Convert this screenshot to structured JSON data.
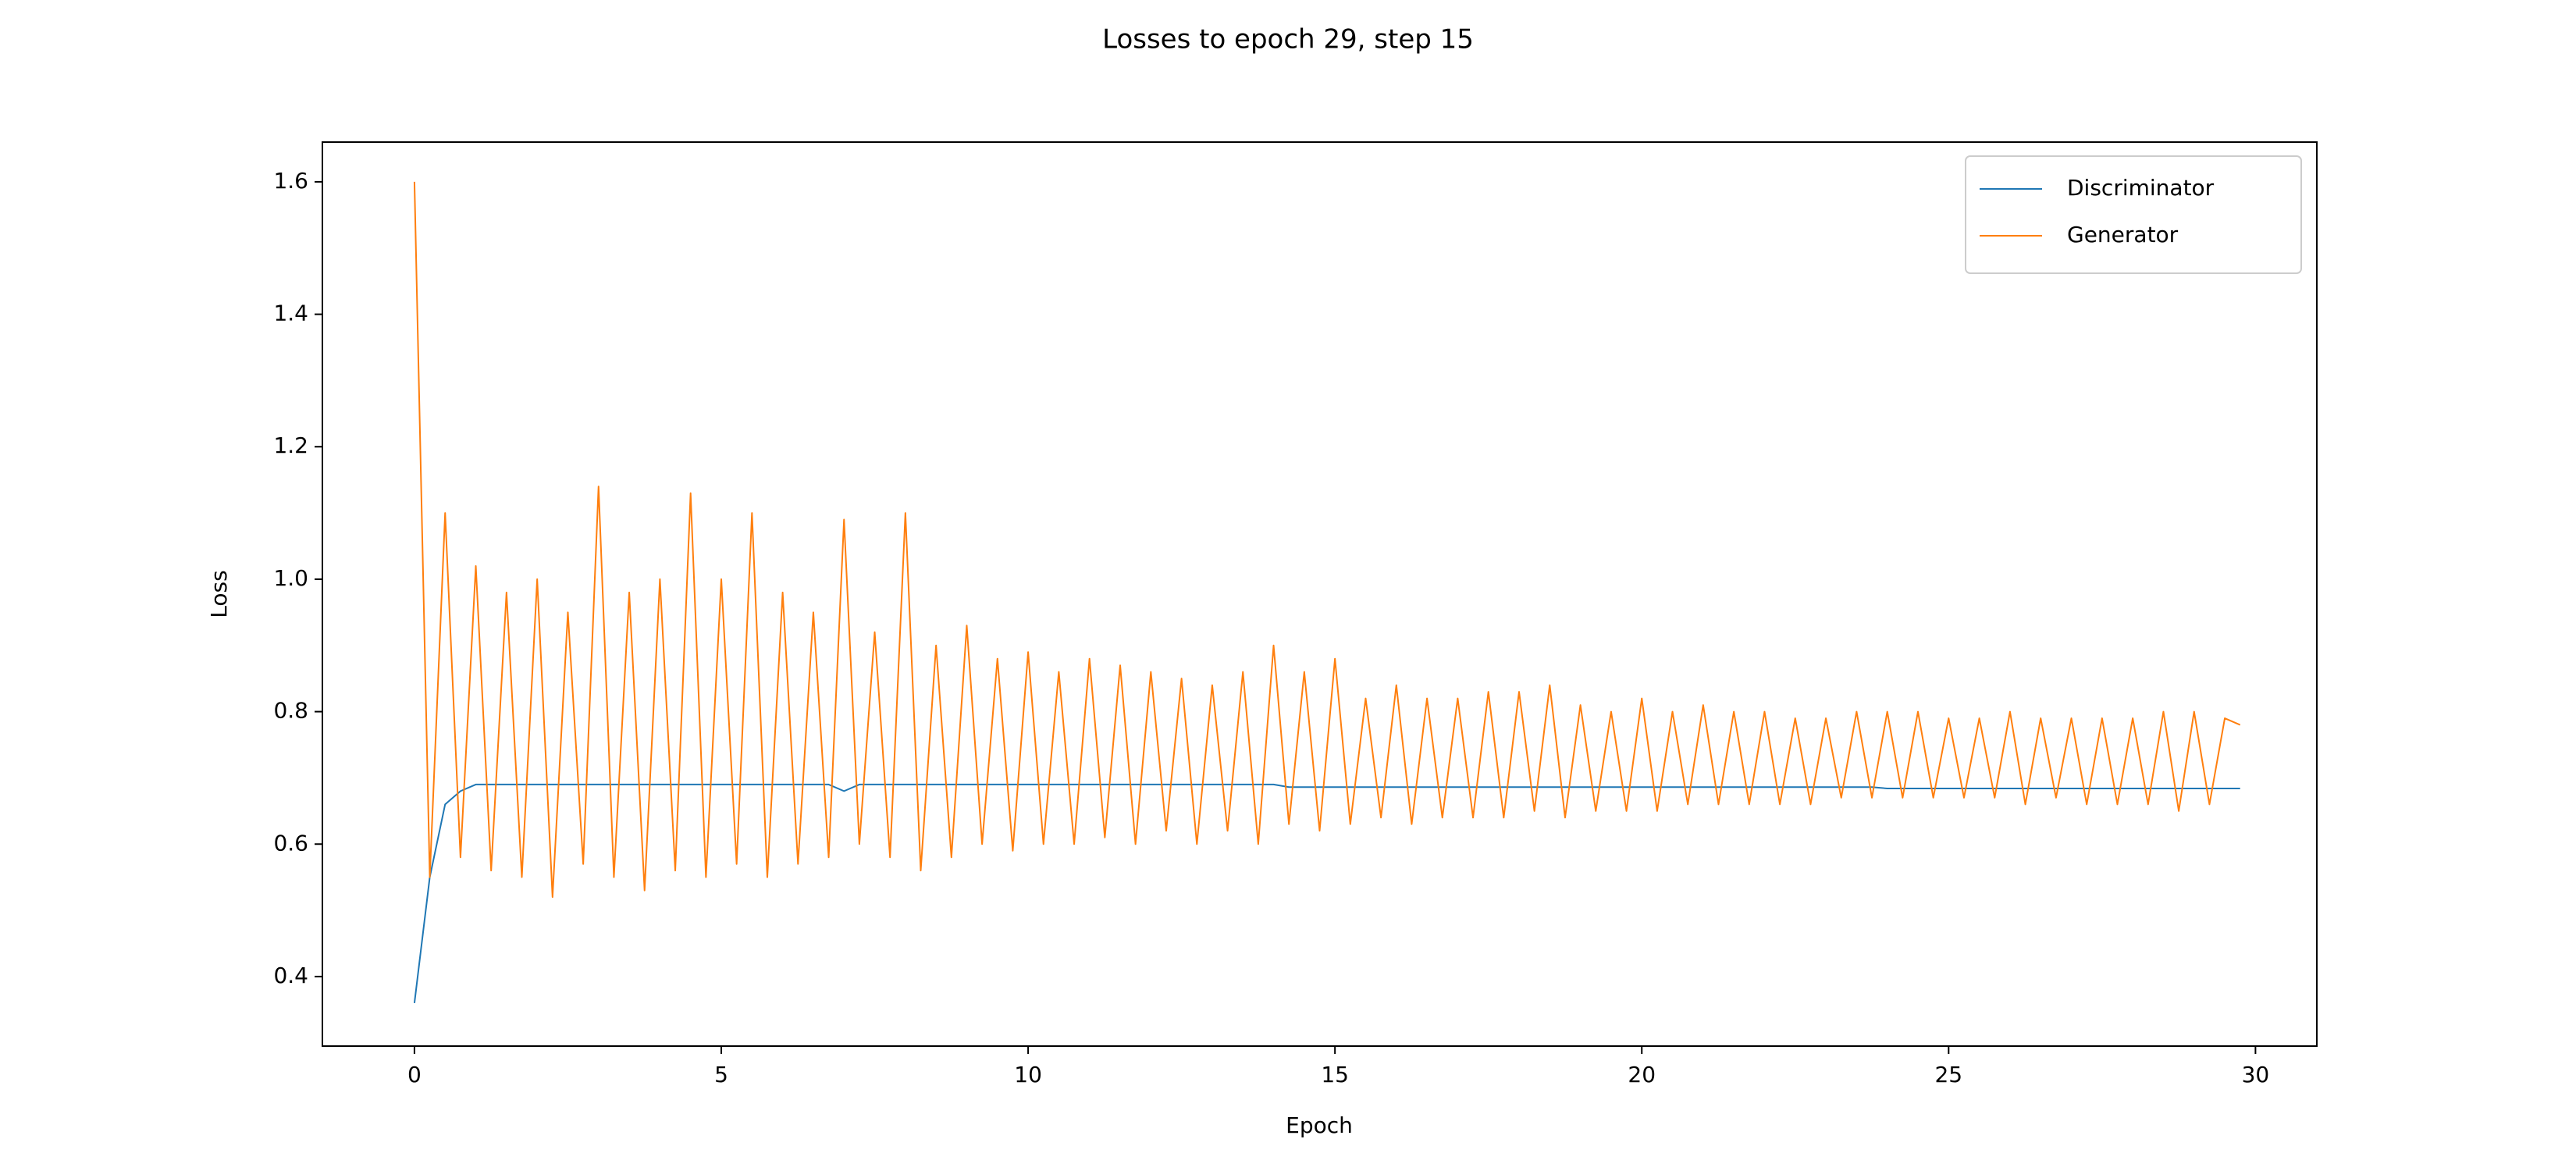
{
  "chart_data": {
    "type": "line",
    "title": "Losses to epoch 29, step 15",
    "xlabel": "Epoch",
    "ylabel": "Loss",
    "x": [
      0,
      0.25,
      0.5,
      0.75,
      1,
      1.25,
      1.5,
      1.75,
      2,
      2.25,
      2.5,
      2.75,
      3,
      3.25,
      3.5,
      3.75,
      4,
      4.25,
      4.5,
      4.75,
      5,
      5.25,
      5.5,
      5.75,
      6,
      6.25,
      6.5,
      6.75,
      7,
      7.25,
      7.5,
      7.75,
      8,
      8.25,
      8.5,
      8.75,
      9,
      9.25,
      9.5,
      9.75,
      10,
      10.25,
      10.5,
      10.75,
      11,
      11.25,
      11.5,
      11.75,
      12,
      12.25,
      12.5,
      12.75,
      13,
      13.25,
      13.5,
      13.75,
      14,
      14.25,
      14.5,
      14.75,
      15,
      15.25,
      15.5,
      15.75,
      16,
      16.25,
      16.5,
      16.75,
      17,
      17.25,
      17.5,
      17.75,
      18,
      18.25,
      18.5,
      18.75,
      19,
      19.25,
      19.5,
      19.75,
      20,
      20.25,
      20.5,
      20.75,
      21,
      21.25,
      21.5,
      21.75,
      22,
      22.25,
      22.5,
      22.75,
      23,
      23.25,
      23.5,
      23.75,
      24,
      24.25,
      24.5,
      24.75,
      25,
      25.25,
      25.5,
      25.75,
      26,
      26.25,
      26.5,
      26.75,
      27,
      27.25,
      27.5,
      27.75,
      28,
      28.25,
      28.5,
      28.75,
      29,
      29.25,
      29.5,
      29.75
    ],
    "series": [
      {
        "name": "Discriminator",
        "color": "#1f77b4",
        "values": [
          0.36,
          0.55,
          0.66,
          0.68,
          0.69,
          0.69,
          0.69,
          0.69,
          0.69,
          0.69,
          0.69,
          0.69,
          0.69,
          0.69,
          0.69,
          0.69,
          0.69,
          0.69,
          0.69,
          0.69,
          0.69,
          0.69,
          0.69,
          0.69,
          0.69,
          0.69,
          0.69,
          0.69,
          0.68,
          0.69,
          0.69,
          0.69,
          0.69,
          0.69,
          0.69,
          0.69,
          0.69,
          0.69,
          0.69,
          0.69,
          0.69,
          0.69,
          0.69,
          0.69,
          0.69,
          0.69,
          0.69,
          0.69,
          0.69,
          0.69,
          0.69,
          0.69,
          0.69,
          0.69,
          0.69,
          0.69,
          0.69,
          0.686,
          0.686,
          0.686,
          0.686,
          0.686,
          0.686,
          0.686,
          0.686,
          0.686,
          0.686,
          0.686,
          0.686,
          0.686,
          0.686,
          0.686,
          0.686,
          0.686,
          0.686,
          0.686,
          0.686,
          0.686,
          0.686,
          0.686,
          0.686,
          0.686,
          0.686,
          0.686,
          0.686,
          0.686,
          0.686,
          0.686,
          0.686,
          0.686,
          0.686,
          0.686,
          0.686,
          0.686,
          0.686,
          0.686,
          0.684,
          0.684,
          0.684,
          0.684,
          0.684,
          0.684,
          0.684,
          0.684,
          0.684,
          0.684,
          0.684,
          0.684,
          0.684,
          0.684,
          0.684,
          0.684,
          0.684,
          0.684,
          0.684,
          0.684,
          0.684,
          0.684,
          0.684,
          0.684
        ]
      },
      {
        "name": "Generator",
        "color": "#ff7f0e",
        "values": [
          1.6,
          0.55,
          1.1,
          0.58,
          1.02,
          0.56,
          0.98,
          0.55,
          1.0,
          0.52,
          0.95,
          0.57,
          1.14,
          0.55,
          0.98,
          0.53,
          1.0,
          0.56,
          1.13,
          0.55,
          1.0,
          0.57,
          1.1,
          0.55,
          0.98,
          0.57,
          0.95,
          0.58,
          1.09,
          0.6,
          0.92,
          0.58,
          1.1,
          0.56,
          0.9,
          0.58,
          0.93,
          0.6,
          0.88,
          0.59,
          0.89,
          0.6,
          0.86,
          0.6,
          0.88,
          0.61,
          0.87,
          0.6,
          0.86,
          0.62,
          0.85,
          0.6,
          0.84,
          0.62,
          0.86,
          0.6,
          0.9,
          0.63,
          0.86,
          0.62,
          0.88,
          0.63,
          0.82,
          0.64,
          0.84,
          0.63,
          0.82,
          0.64,
          0.82,
          0.64,
          0.83,
          0.64,
          0.83,
          0.65,
          0.84,
          0.64,
          0.81,
          0.65,
          0.8,
          0.65,
          0.82,
          0.65,
          0.8,
          0.66,
          0.81,
          0.66,
          0.8,
          0.66,
          0.8,
          0.66,
          0.79,
          0.66,
          0.79,
          0.67,
          0.8,
          0.67,
          0.8,
          0.67,
          0.8,
          0.67,
          0.79,
          0.67,
          0.79,
          0.67,
          0.8,
          0.66,
          0.79,
          0.67,
          0.79,
          0.66,
          0.79,
          0.66,
          0.79,
          0.66,
          0.8,
          0.65,
          0.8,
          0.66,
          0.79,
          0.78
        ]
      }
    ],
    "xlim": [
      -1.5,
      31.0
    ],
    "ylim": [
      0.295,
      1.66
    ],
    "xticks": [
      0,
      5,
      10,
      15,
      20,
      25,
      30
    ],
    "yticks": [
      0.4,
      0.6,
      0.8,
      {
        "value": 1.0,
        "label": "1.0"
      },
      1.2,
      1.4,
      1.6
    ],
    "grid": false,
    "legend": "upper right"
  }
}
